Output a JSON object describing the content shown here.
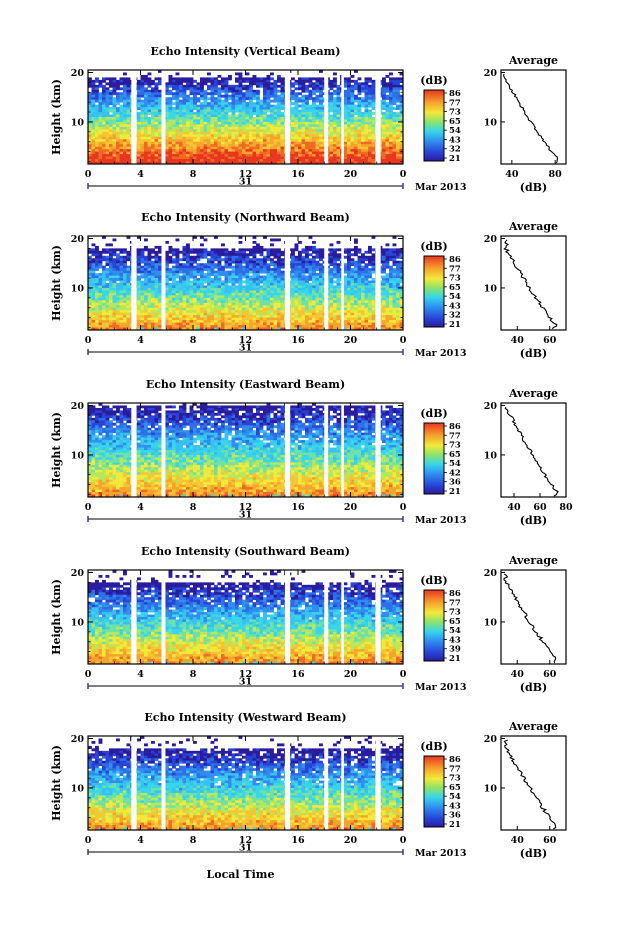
{
  "chart_data": {
    "type": "heatmap",
    "x_ticks": [
      "0",
      "4",
      "8",
      "12",
      "16",
      "20",
      "0"
    ],
    "x_range_hours": [
      0,
      24
    ],
    "day_label": "31",
    "month_label": "Mar 2013",
    "y_ticks": [
      "20",
      "10"
    ],
    "y_range_km": [
      1.5,
      20.5
    ],
    "ylabel": "Height (km)",
    "xlabel": "Local Time",
    "colorbar_unit": "(dB)",
    "colorbar_ticks_default": [
      "86",
      "77",
      "73",
      "65",
      "54",
      "43",
      "32",
      "21"
    ],
    "data_gaps_hours": [
      [
        3.3,
        3.7
      ],
      [
        5.6,
        5.9
      ],
      [
        15.0,
        15.4
      ],
      [
        18.0,
        18.3
      ],
      [
        19.3,
        19.5
      ],
      [
        21.9,
        22.3
      ]
    ],
    "average_title": "Average",
    "average_xlabel": "(dB)",
    "panels": [
      {
        "title": "Echo Intensity (Vertical Beam)",
        "cbar_ticks": [
          "86",
          "77",
          "73",
          "65",
          "54",
          "43",
          "32",
          "21"
        ],
        "avg_xticks": [
          "40",
          "80"
        ],
        "avg_xrange": [
          30,
          90
        ],
        "top_km": 19.0
      },
      {
        "title": "Echo Intensity (Northward Beam)",
        "cbar_ticks": [
          "86",
          "77",
          "73",
          "65",
          "54",
          "43",
          "32",
          "21"
        ],
        "avg_xticks": [
          "40",
          "60"
        ],
        "avg_xrange": [
          30,
          70
        ],
        "top_km": 18.0
      },
      {
        "title": "Echo Intensity (Eastward Beam)",
        "cbar_ticks": [
          "86",
          "77",
          "73",
          "65",
          "54",
          "42",
          "36",
          "21"
        ],
        "avg_xticks": [
          "40",
          "60",
          "80"
        ],
        "avg_xrange": [
          30,
          80
        ],
        "top_km": 20.0
      },
      {
        "title": "Echo Intensity (Southward Beam)",
        "cbar_ticks": [
          "86",
          "77",
          "73",
          "65",
          "54",
          "43",
          "39",
          "21"
        ],
        "avg_xticks": [
          "40",
          "60"
        ],
        "avg_xrange": [
          30,
          70
        ],
        "top_km": 18.0
      },
      {
        "title": "Echo Intensity (Westward Beam)",
        "cbar_ticks": [
          "86",
          "77",
          "73",
          "65",
          "54",
          "43",
          "36",
          "21"
        ],
        "avg_xticks": [
          "40",
          "60"
        ],
        "avg_xrange": [
          30,
          70
        ],
        "top_km": 18.0
      }
    ]
  }
}
